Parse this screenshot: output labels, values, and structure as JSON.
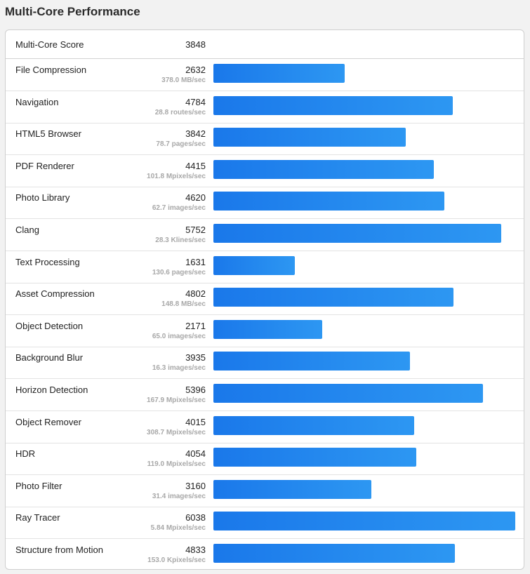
{
  "page": {
    "title": "Multi-Core Performance"
  },
  "overall": {
    "label": "Multi-Core Score",
    "value": "3848"
  },
  "colors": {
    "bar_start": "#1a78ea",
    "bar_end": "#2d97f2"
  },
  "chart_data": {
    "type": "bar",
    "orientation": "horizontal",
    "title": "Multi-Core Performance",
    "xlim": [
      0,
      6038
    ],
    "categories": [
      "File Compression",
      "Navigation",
      "HTML5 Browser",
      "PDF Renderer",
      "Photo Library",
      "Clang",
      "Text Processing",
      "Asset Compression",
      "Object Detection",
      "Background Blur",
      "Horizon Detection",
      "Object Remover",
      "HDR",
      "Photo Filter",
      "Ray Tracer",
      "Structure from Motion"
    ],
    "values": [
      2632,
      4784,
      3842,
      4415,
      4620,
      5752,
      1631,
      4802,
      2171,
      3935,
      5396,
      4015,
      4054,
      3160,
      6038,
      4833
    ],
    "rates": [
      "378.0 MB/sec",
      "28.8 routes/sec",
      "78.7 pages/sec",
      "101.8 Mpixels/sec",
      "62.7 images/sec",
      "28.3 Klines/sec",
      "130.6 pages/sec",
      "148.8 MB/sec",
      "65.0 images/sec",
      "16.3 images/sec",
      "167.9 Mpixels/sec",
      "308.7 Mpixels/sec",
      "119.0 Mpixels/sec",
      "31.4 images/sec",
      "5.84 Mpixels/sec",
      "153.0 Kpixels/sec"
    ]
  }
}
